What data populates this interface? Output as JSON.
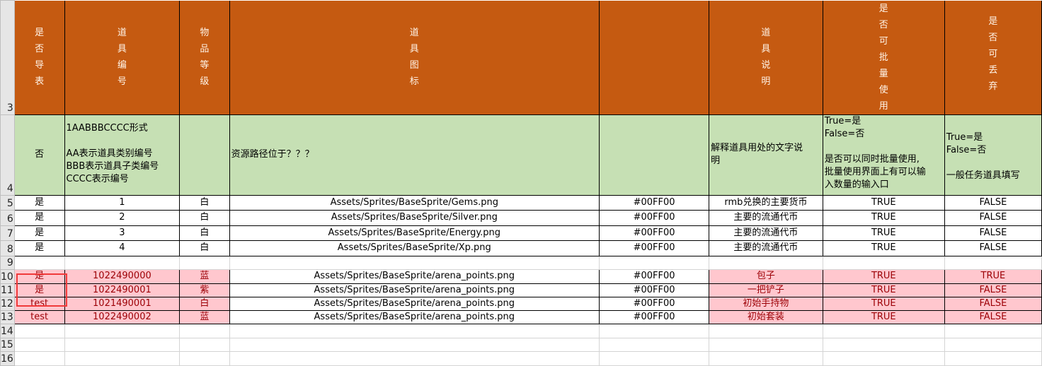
{
  "header": {
    "row_number": "3",
    "cells": [
      "是否导表",
      "道具编号",
      "物品等级",
      "道具图标",
      "",
      "道具说明",
      "是否可批量使用",
      "是否可丢弃"
    ]
  },
  "notes": {
    "row_number": "4",
    "cells": [
      "否",
      "1AABBBCCCC形式\n\nAA表示道具类别编号\nBBB表示道具子类编号\nCCCC表示编号",
      "",
      "资源路径位于？？？",
      "",
      "解释道具用处的文字说\n明",
      "True=是\nFalse=否\n\n是否可以同时批量使用,\n批量使用界面上有可以输\n入数量的输入口",
      "True=是\nFalse=否\n\n一般任务道具填写"
    ]
  },
  "rows": [
    {
      "row_number": "5",
      "cells": [
        "是",
        "1",
        "白",
        "Assets/Sprites/BaseSprite/Gems.png",
        "#00FF00",
        "rmb兑换的主要货币",
        "TRUE",
        "FALSE"
      ]
    },
    {
      "row_number": "6",
      "cells": [
        "是",
        "2",
        "白",
        "Assets/Sprites/BaseSprite/Silver.png",
        "#00FF00",
        "主要的流通代币",
        "TRUE",
        "FALSE"
      ]
    },
    {
      "row_number": "7",
      "cells": [
        "是",
        "3",
        "白",
        "Assets/Sprites/BaseSprite/Energy.png",
        "#00FF00",
        "主要的流通代币",
        "TRUE",
        "FALSE"
      ]
    },
    {
      "row_number": "8",
      "cells": [
        "是",
        "4",
        "白",
        "Assets/Sprites/BaseSprite/Xp.png",
        "#00FF00",
        "主要的流通代币",
        "TRUE",
        "FALSE"
      ]
    },
    {
      "row_number": "9",
      "cells": [
        "",
        "",
        "",
        "",
        "",
        "",
        "",
        ""
      ]
    },
    {
      "row_number": "10",
      "cells": [
        "是",
        "1022490000",
        "蓝",
        "Assets/Sprites/BaseSprite/arena_points.png",
        "#00FF00",
        "包子",
        "TRUE",
        "TRUE"
      ]
    },
    {
      "row_number": "11",
      "cells": [
        "是",
        "1022490001",
        "紫",
        "Assets/Sprites/BaseSprite/arena_points.png",
        "#00FF00",
        "一把铲子",
        "TRUE",
        "FALSE"
      ]
    },
    {
      "row_number": "12",
      "cells": [
        "test",
        "1021490001",
        "白",
        "Assets/Sprites/BaseSprite/arena_points.png",
        "#00FF00",
        "初始手持物",
        "TRUE",
        "FALSE"
      ]
    },
    {
      "row_number": "13",
      "cells": [
        "test",
        "1022490002",
        "蓝",
        "Assets/Sprites/BaseSprite/arena_points.png",
        "#00FF00",
        "初始套装",
        "TRUE",
        "FALSE"
      ]
    },
    {
      "row_number": "14",
      "cells": [
        "",
        "",
        "",
        "",
        "",
        "",
        "",
        ""
      ]
    },
    {
      "row_number": "15",
      "cells": [
        "",
        "",
        "",
        "",
        "",
        "",
        "",
        ""
      ]
    },
    {
      "row_number": "16",
      "cells": [
        "",
        "",
        "",
        "",
        "",
        "",
        "",
        ""
      ]
    }
  ],
  "colors": {
    "header_bg": "#C55A11",
    "note_bg": "#C6E0B4",
    "bad_bg": "#FFC7CE",
    "bad_text": "#9C0006",
    "selection_box": "#F03A3A"
  }
}
